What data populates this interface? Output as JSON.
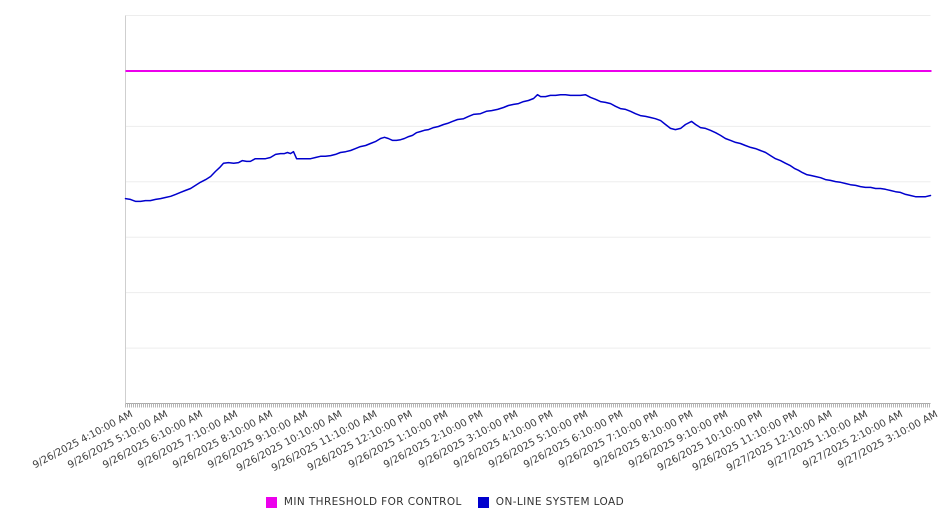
{
  "legend": {
    "items": [
      {
        "label": "MIN THRESHOLD FOR CONTROL",
        "color": "#ec00ec"
      },
      {
        "label": "ON-LINE SYSTEM LOAD",
        "color": "#0000cd"
      }
    ]
  },
  "chart_data": {
    "type": "line",
    "title": "",
    "xlabel": "",
    "ylabel": "",
    "grid": true,
    "legend_position": "bottom-center",
    "x_axis": {
      "tick_labels": [
        "9/26/2025 4:10:00 AM",
        "9/26/2025 5:10:00 AM",
        "9/26/2025 6:10:00 AM",
        "9/26/2025 7:10:00 AM",
        "9/26/2025 8:10:00 AM",
        "9/26/2025 9:10:00 AM",
        "9/26/2025 10:10:00 AM",
        "9/26/2025 11:10:00 AM",
        "9/26/2025 12:10:00 PM",
        "9/26/2025 1:10:00 PM",
        "9/26/2025 2:10:00 PM",
        "9/26/2025 3:10:00 PM",
        "9/26/2025 4:10:00 PM",
        "9/26/2025 5:10:00 PM",
        "9/26/2025 6:10:00 PM",
        "9/26/2025 7:10:00 PM",
        "9/26/2025 8:10:00 PM",
        "9/26/2025 9:10:00 PM",
        "9/26/2025 10:10:00 PM",
        "9/26/2025 11:10:00 PM",
        "9/27/2025 12:10:00 AM",
        "9/27/2025 1:10:00 AM",
        "9/27/2025 2:10:00 AM",
        "9/27/2025 3:10:00 AM"
      ],
      "hours_span": 23,
      "label_rotation_deg": -28,
      "has_dense_minor_ticks": true
    },
    "y_axis": {
      "tick_labels_visible": false,
      "gridline_count": 8,
      "note": "no numeric y scale shown; values stored as fraction of plot height (0=bottom axis, 1=top gridline)"
    },
    "series": [
      {
        "name": "MIN THRESHOLD FOR CONTROL",
        "style": "horizontal-line",
        "color": "#ec00ec",
        "value_fraction": 0.857
      },
      {
        "name": "ON-LINE SYSTEM LOAD",
        "style": "line",
        "color": "#0000cd",
        "x_unit": "hours since 9/26/2025 4:10:00 AM",
        "points_hours_fraction": [
          [
            0,
            0.528
          ],
          [
            0.14,
            0.526
          ],
          [
            0.29,
            0.521
          ],
          [
            0.43,
            0.521
          ],
          [
            0.57,
            0.523
          ],
          [
            0.71,
            0.523
          ],
          [
            0.86,
            0.526
          ],
          [
            1,
            0.528
          ],
          [
            1.14,
            0.531
          ],
          [
            1.29,
            0.534
          ],
          [
            1.43,
            0.539
          ],
          [
            1.57,
            0.544
          ],
          [
            1.71,
            0.549
          ],
          [
            1.86,
            0.554
          ],
          [
            2,
            0.562
          ],
          [
            2.14,
            0.57
          ],
          [
            2.29,
            0.577
          ],
          [
            2.43,
            0.585
          ],
          [
            2.57,
            0.598
          ],
          [
            2.69,
            0.608
          ],
          [
            2.8,
            0.619
          ],
          [
            2.94,
            0.621
          ],
          [
            3.09,
            0.619
          ],
          [
            3.23,
            0.621
          ],
          [
            3.34,
            0.626
          ],
          [
            3.46,
            0.624
          ],
          [
            3.57,
            0.624
          ],
          [
            3.71,
            0.631
          ],
          [
            3.86,
            0.631
          ],
          [
            4,
            0.631
          ],
          [
            4.14,
            0.634
          ],
          [
            4.29,
            0.642
          ],
          [
            4.43,
            0.644
          ],
          [
            4.54,
            0.644
          ],
          [
            4.63,
            0.647
          ],
          [
            4.71,
            0.644
          ],
          [
            4.8,
            0.649
          ],
          [
            4.89,
            0.631
          ],
          [
            5,
            0.631
          ],
          [
            5.14,
            0.631
          ],
          [
            5.29,
            0.631
          ],
          [
            5.43,
            0.634
          ],
          [
            5.57,
            0.637
          ],
          [
            5.71,
            0.637
          ],
          [
            5.86,
            0.639
          ],
          [
            6,
            0.642
          ],
          [
            6.14,
            0.647
          ],
          [
            6.29,
            0.649
          ],
          [
            6.43,
            0.652
          ],
          [
            6.57,
            0.657
          ],
          [
            6.71,
            0.662
          ],
          [
            6.86,
            0.665
          ],
          [
            7,
            0.67
          ],
          [
            7.14,
            0.675
          ],
          [
            7.29,
            0.683
          ],
          [
            7.4,
            0.686
          ],
          [
            7.51,
            0.683
          ],
          [
            7.63,
            0.678
          ],
          [
            7.74,
            0.678
          ],
          [
            7.86,
            0.68
          ],
          [
            7.97,
            0.683
          ],
          [
            8.09,
            0.688
          ],
          [
            8.2,
            0.691
          ],
          [
            8.31,
            0.698
          ],
          [
            8.43,
            0.701
          ],
          [
            8.54,
            0.704
          ],
          [
            8.66,
            0.706
          ],
          [
            8.8,
            0.711
          ],
          [
            8.94,
            0.714
          ],
          [
            9.09,
            0.719
          ],
          [
            9.2,
            0.722
          ],
          [
            9.34,
            0.727
          ],
          [
            9.49,
            0.732
          ],
          [
            9.66,
            0.734
          ],
          [
            9.8,
            0.74
          ],
          [
            9.94,
            0.745
          ],
          [
            10.14,
            0.747
          ],
          [
            10.31,
            0.753
          ],
          [
            10.46,
            0.755
          ],
          [
            10.63,
            0.758
          ],
          [
            10.8,
            0.763
          ],
          [
            10.94,
            0.768
          ],
          [
            11.09,
            0.771
          ],
          [
            11.23,
            0.773
          ],
          [
            11.37,
            0.778
          ],
          [
            11.51,
            0.781
          ],
          [
            11.66,
            0.786
          ],
          [
            11.77,
            0.796
          ],
          [
            11.86,
            0.791
          ],
          [
            12,
            0.791
          ],
          [
            12.14,
            0.794
          ],
          [
            12.29,
            0.794
          ],
          [
            12.43,
            0.796
          ],
          [
            12.57,
            0.796
          ],
          [
            12.71,
            0.794
          ],
          [
            12.86,
            0.794
          ],
          [
            13,
            0.794
          ],
          [
            13.14,
            0.796
          ],
          [
            13.29,
            0.789
          ],
          [
            13.43,
            0.784
          ],
          [
            13.57,
            0.778
          ],
          [
            13.71,
            0.776
          ],
          [
            13.86,
            0.773
          ],
          [
            14,
            0.766
          ],
          [
            14.14,
            0.76
          ],
          [
            14.29,
            0.758
          ],
          [
            14.43,
            0.753
          ],
          [
            14.57,
            0.747
          ],
          [
            14.71,
            0.742
          ],
          [
            14.86,
            0.74
          ],
          [
            15,
            0.737
          ],
          [
            15.14,
            0.734
          ],
          [
            15.29,
            0.729
          ],
          [
            15.43,
            0.719
          ],
          [
            15.57,
            0.709
          ],
          [
            15.71,
            0.706
          ],
          [
            15.86,
            0.709
          ],
          [
            16,
            0.719
          ],
          [
            16.17,
            0.727
          ],
          [
            16.29,
            0.719
          ],
          [
            16.43,
            0.711
          ],
          [
            16.57,
            0.709
          ],
          [
            16.71,
            0.704
          ],
          [
            16.86,
            0.698
          ],
          [
            17,
            0.691
          ],
          [
            17.14,
            0.683
          ],
          [
            17.29,
            0.678
          ],
          [
            17.43,
            0.673
          ],
          [
            17.57,
            0.67
          ],
          [
            17.71,
            0.665
          ],
          [
            17.86,
            0.66
          ],
          [
            18,
            0.657
          ],
          [
            18.14,
            0.652
          ],
          [
            18.29,
            0.647
          ],
          [
            18.43,
            0.639
          ],
          [
            18.57,
            0.631
          ],
          [
            18.71,
            0.626
          ],
          [
            18.86,
            0.619
          ],
          [
            19,
            0.613
          ],
          [
            19.11,
            0.606
          ],
          [
            19.23,
            0.601
          ],
          [
            19.34,
            0.595
          ],
          [
            19.46,
            0.59
          ],
          [
            19.57,
            0.588
          ],
          [
            19.71,
            0.585
          ],
          [
            19.86,
            0.582
          ],
          [
            20,
            0.577
          ],
          [
            20.14,
            0.575
          ],
          [
            20.29,
            0.572
          ],
          [
            20.43,
            0.57
          ],
          [
            20.57,
            0.567
          ],
          [
            20.71,
            0.564
          ],
          [
            20.86,
            0.562
          ],
          [
            21,
            0.559
          ],
          [
            21.14,
            0.557
          ],
          [
            21.29,
            0.557
          ],
          [
            21.43,
            0.554
          ],
          [
            21.57,
            0.554
          ],
          [
            21.71,
            0.552
          ],
          [
            21.86,
            0.549
          ],
          [
            22,
            0.546
          ],
          [
            22.14,
            0.544
          ],
          [
            22.29,
            0.539
          ],
          [
            22.43,
            0.536
          ],
          [
            22.57,
            0.533
          ],
          [
            22.71,
            0.533
          ],
          [
            22.86,
            0.533
          ],
          [
            23,
            0.536
          ]
        ]
      }
    ]
  }
}
